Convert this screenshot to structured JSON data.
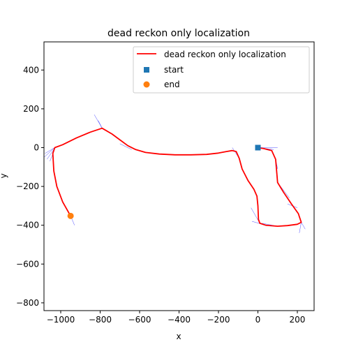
{
  "chart_data": {
    "type": "line",
    "title": "dead reckon only localization",
    "xlabel": "x",
    "ylabel": "y",
    "xlim": [
      -1085,
      285
    ],
    "ylim": [
      -840,
      545
    ],
    "xticks": [
      -1000,
      -800,
      -600,
      -400,
      -200,
      0,
      200
    ],
    "yticks": [
      400,
      200,
      0,
      -200,
      -400,
      -600,
      -800
    ],
    "grid": false,
    "legend": {
      "placement": "top-right",
      "entries": [
        "dead reckon only localization",
        "start",
        "end"
      ]
    },
    "series": [
      {
        "name": "dead reckon only localization",
        "kind": "line",
        "color": "#ff0000",
        "x": [
          0,
          30,
          70,
          90,
          95,
          100,
          130,
          170,
          205,
          220,
          200,
          150,
          100,
          40,
          10,
          3,
          0,
          -5,
          -20,
          -50,
          -80,
          -95,
          -110,
          -130,
          -160,
          -200,
          -260,
          -340,
          -420,
          -500,
          -570,
          -620,
          -660,
          -700,
          -740,
          -790,
          -850,
          -920,
          -990,
          -1030,
          -1040,
          -1035,
          -1020,
          -990,
          -950
        ],
        "y": [
          0,
          -5,
          -15,
          -60,
          -120,
          -180,
          -230,
          -290,
          -340,
          -385,
          -395,
          -402,
          -405,
          -400,
          -390,
          -370,
          -300,
          -250,
          -215,
          -170,
          -110,
          -55,
          -20,
          -15,
          -20,
          -28,
          -35,
          -37,
          -37,
          -33,
          -25,
          -10,
          10,
          40,
          70,
          100,
          80,
          50,
          15,
          0,
          -30,
          -120,
          -200,
          -280,
          -352
        ]
      },
      {
        "name": "start",
        "kind": "scatter",
        "marker": "square",
        "color": "#1f77b4",
        "x": [
          0
        ],
        "y": [
          0
        ]
      },
      {
        "name": "end",
        "kind": "scatter",
        "marker": "circle",
        "color": "#ff7f0e",
        "x": [
          -950
        ],
        "y": [
          -352
        ]
      },
      {
        "kind": "heading-rays",
        "color": "#0000ff",
        "segments": [
          [
            [
              0,
              0
            ],
            [
              100,
              0
            ]
          ],
          [
            [
              0,
              0
            ],
            [
              80,
              -10
            ]
          ],
          [
            [
              90,
              -60
            ],
            [
              100,
              -110
            ]
          ],
          [
            [
              100,
              -180
            ],
            [
              160,
              -260
            ]
          ],
          [
            [
              150,
              -290
            ],
            [
              200,
              -310
            ]
          ],
          [
            [
              220,
              -385
            ],
            [
              240,
              -420
            ]
          ],
          [
            [
              220,
              -385
            ],
            [
              210,
              -440
            ]
          ],
          [
            [
              100,
              -405
            ],
            [
              20,
              -390
            ]
          ],
          [
            [
              40,
              -400
            ],
            [
              -30,
              -380
            ]
          ],
          [
            [
              10,
              -390
            ],
            [
              -35,
              -310
            ]
          ],
          [
            [
              -95,
              -55
            ],
            [
              -130,
              0
            ]
          ],
          [
            [
              -640,
              -10
            ],
            [
              -700,
              20
            ]
          ],
          [
            [
              -790,
              100
            ],
            [
              -830,
              170
            ]
          ],
          [
            [
              -790,
              100
            ],
            [
              -810,
              140
            ]
          ],
          [
            [
              -1030,
              0
            ],
            [
              -1080,
              -30
            ]
          ],
          [
            [
              -1030,
              0
            ],
            [
              -1085,
              -50
            ]
          ],
          [
            [
              -1035,
              -10
            ],
            [
              -1070,
              -60
            ]
          ],
          [
            [
              -1035,
              -20
            ],
            [
              -1055,
              -70
            ]
          ],
          [
            [
              -950,
              -352
            ],
            [
              -930,
              -400
            ]
          ]
        ]
      }
    ]
  }
}
